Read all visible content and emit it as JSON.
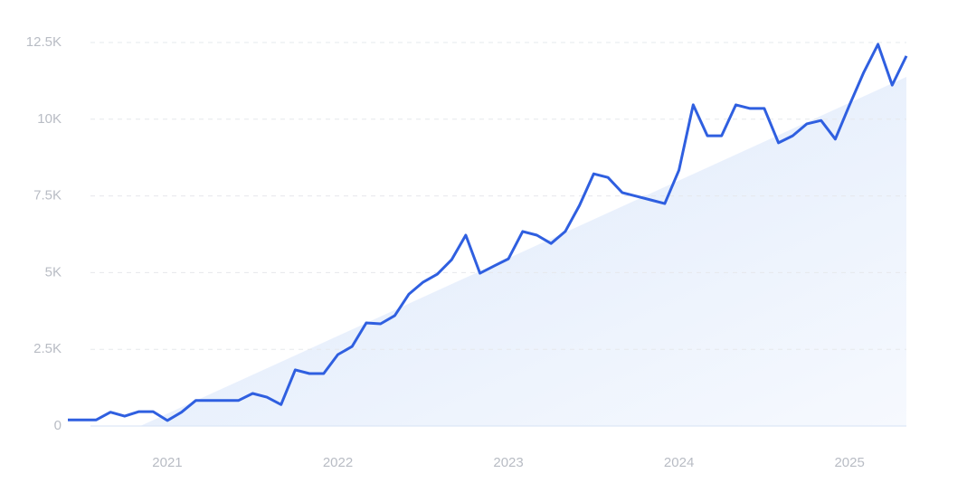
{
  "chart_data": {
    "type": "line",
    "categories": [
      null,
      null,
      null,
      null,
      null,
      null,
      null,
      "2021",
      null,
      null,
      null,
      null,
      null,
      null,
      null,
      null,
      null,
      null,
      null,
      "2022",
      null,
      null,
      null,
      null,
      null,
      null,
      null,
      null,
      null,
      null,
      null,
      "2023",
      null,
      null,
      null,
      null,
      null,
      null,
      null,
      null,
      null,
      null,
      null,
      "2024",
      null,
      null,
      null,
      null,
      null,
      null,
      null,
      null,
      null,
      null,
      null,
      "2025",
      null,
      null,
      null,
      null
    ],
    "series": [
      {
        "color": "#2f5fe0",
        "values": [
          200,
          200,
          200,
          450,
          320,
          470,
          470,
          180,
          450,
          830,
          830,
          830,
          830,
          1060,
          940,
          700,
          1830,
          1710,
          1710,
          2330,
          2590,
          3360,
          3330,
          3600,
          4300,
          4690,
          4950,
          5420,
          6220,
          4980,
          5220,
          5450,
          6340,
          6220,
          5950,
          6340,
          7190,
          8220,
          8100,
          7610,
          7490,
          7370,
          7250,
          8340,
          10470,
          9460,
          9460,
          10470,
          10350,
          10350,
          9230,
          9460,
          9850,
          9960,
          9350,
          10470,
          11530,
          12440,
          11110,
          12060
        ]
      }
    ],
    "ylim": [
      0,
      12500
    ],
    "yticks": [
      0,
      {
        "value": 2500,
        "label": "2.5K"
      },
      {
        "value": 5000,
        "label": "5K"
      },
      {
        "value": 7500,
        "label": "7.5K"
      },
      {
        "value": 10000,
        "label": "10K"
      },
      {
        "value": 12500,
        "label": "12.5K"
      }
    ],
    "grid": true
  }
}
